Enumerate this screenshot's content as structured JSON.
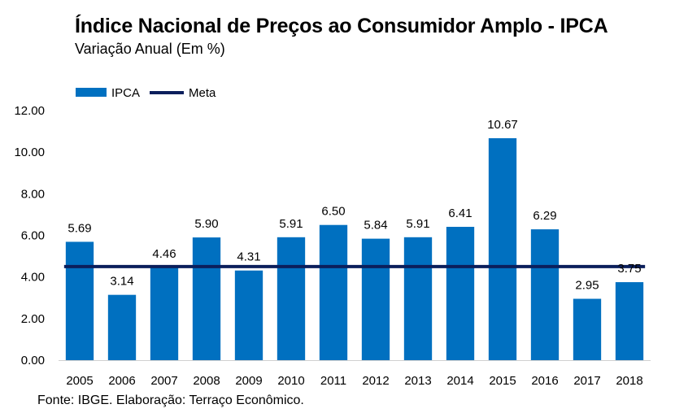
{
  "chart_data": {
    "type": "bar",
    "title": "Índice Nacional de Preços ao Consumidor Amplo - IPCA",
    "subtitle": "Variação Anual (Em %)",
    "source": "Fonte: IBGE. Elaboração: Terraço Econômico.",
    "categories": [
      "2005",
      "2006",
      "2007",
      "2008",
      "2009",
      "2010",
      "2011",
      "2012",
      "2013",
      "2014",
      "2015",
      "2016",
      "2017",
      "2018"
    ],
    "series": [
      {
        "name": "IPCA",
        "type": "bar",
        "color": "#0070C0",
        "values": [
          5.69,
          3.14,
          4.46,
          5.9,
          4.31,
          5.91,
          6.5,
          5.84,
          5.91,
          6.41,
          10.67,
          6.29,
          2.95,
          3.75
        ],
        "labels": [
          "5.69",
          "3.14",
          "4.46",
          "5.90",
          "4.31",
          "5.91",
          "6.50",
          "5.84",
          "5.91",
          "6.41",
          "10.67",
          "6.29",
          "2.95",
          "3.75"
        ]
      },
      {
        "name": "Meta",
        "type": "line",
        "color": "#0B1F5C",
        "values": [
          4.5,
          4.5,
          4.5,
          4.5,
          4.5,
          4.5,
          4.5,
          4.5,
          4.5,
          4.5,
          4.5,
          4.5,
          4.5,
          4.5
        ]
      }
    ],
    "ylim": [
      0,
      12
    ],
    "yticks": [
      "0.00",
      "2.00",
      "4.00",
      "6.00",
      "8.00",
      "10.00",
      "12.00"
    ],
    "ytick_values": [
      0,
      2,
      4,
      6,
      8,
      10,
      12
    ],
    "xlabel": "",
    "ylabel": "",
    "grid": false,
    "legend": "top-left"
  }
}
